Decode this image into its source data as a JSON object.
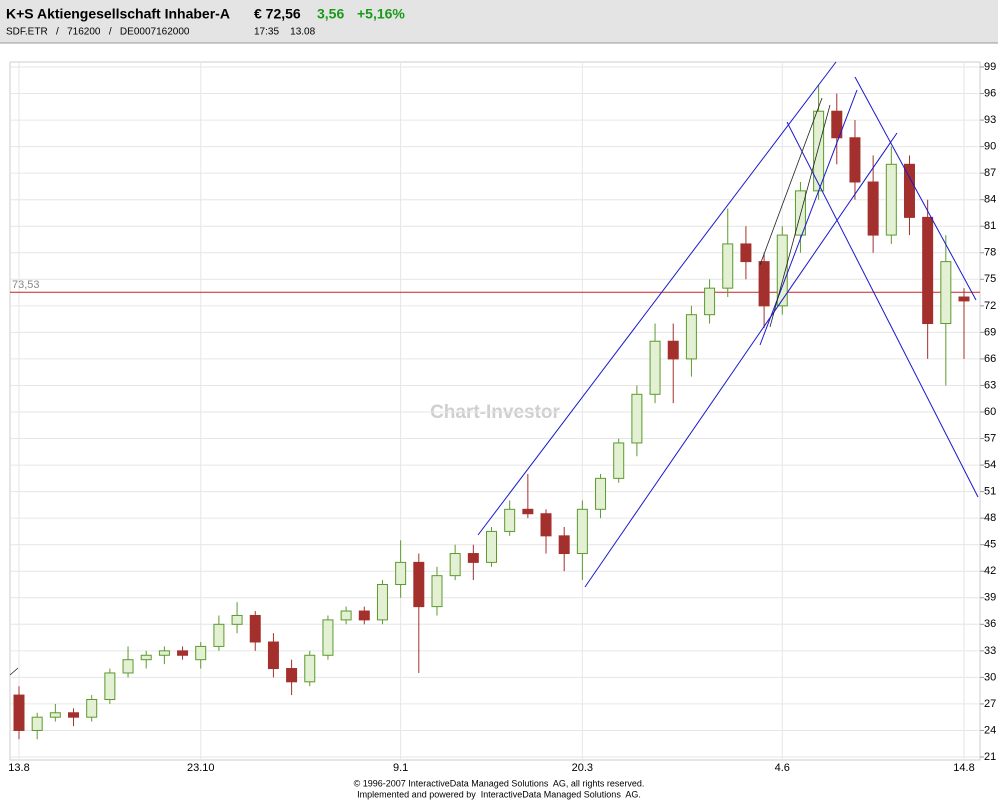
{
  "header": {
    "title": "K+S Aktiengesellschaft Inhaber-A",
    "price": "€ 72,56",
    "change": "3,56",
    "change_pct": "+5,16%",
    "ids": "SDF.ETR   /   716200   /   DE0007162000",
    "time": "17:35    13.08"
  },
  "chart_data": {
    "type": "candlestick",
    "watermark": "Chart-Investor",
    "categories": [
      "13.8",
      null,
      null,
      null,
      null,
      null,
      null,
      null,
      null,
      null,
      "23.10",
      null,
      null,
      null,
      null,
      null,
      null,
      null,
      null,
      null,
      null,
      "9.1",
      null,
      null,
      null,
      null,
      null,
      null,
      null,
      null,
      null,
      "20.3",
      null,
      null,
      null,
      null,
      null,
      null,
      null,
      null,
      null,
      null,
      "4.6",
      null,
      null,
      null,
      null,
      null,
      null,
      null,
      null,
      null,
      "14.8"
    ],
    "open": [
      28,
      24,
      25.5,
      26,
      25.5,
      27.5,
      30.5,
      32,
      32.5,
      33,
      32,
      33.5,
      36,
      37,
      34,
      31,
      29.5,
      32.5,
      36.5,
      37.5,
      36.5,
      40.5,
      43,
      38,
      41.5,
      44,
      43,
      46.5,
      49,
      48.5,
      46,
      44,
      49,
      52.5,
      56.5,
      62,
      68,
      66,
      71,
      74,
      79,
      77,
      72,
      80,
      85,
      94,
      91,
      86,
      80,
      88,
      82,
      70,
      73
    ],
    "high": [
      29,
      26,
      27,
      26.5,
      28,
      31,
      33.5,
      33,
      33.5,
      33.5,
      34,
      37,
      38.5,
      37.5,
      35,
      32,
      33,
      37,
      38,
      38,
      41,
      45.5,
      44,
      42.5,
      45,
      45,
      47,
      50,
      53,
      49,
      47,
      50,
      53,
      57,
      63,
      70,
      70,
      72,
      75,
      83,
      81,
      78,
      81,
      86,
      97,
      96,
      93,
      89,
      90,
      89,
      84,
      80,
      74
    ],
    "low": [
      23,
      23,
      25,
      24.5,
      25,
      27,
      30,
      31,
      31.5,
      32,
      31,
      33,
      35,
      33,
      30,
      28,
      29,
      32,
      36,
      36,
      36,
      39,
      30.5,
      37,
      41,
      41,
      42.5,
      46,
      48,
      44,
      42,
      41,
      48,
      52,
      55,
      61,
      61,
      64,
      70,
      73,
      75,
      69.5,
      71,
      78,
      84,
      88,
      84,
      78,
      79,
      80,
      66,
      63,
      66
    ],
    "close": [
      24,
      25.5,
      26,
      25.5,
      27.5,
      30.5,
      32,
      32.5,
      33,
      32.5,
      33.5,
      36,
      37,
      34,
      31,
      29.5,
      32.5,
      36.5,
      37.5,
      36.5,
      40.5,
      43,
      38,
      41.5,
      44,
      43,
      46.5,
      49,
      48.5,
      46,
      44,
      49,
      52.5,
      56.5,
      62,
      68,
      66,
      71,
      74,
      79,
      77,
      72,
      80,
      85,
      94,
      91,
      86,
      80,
      88,
      82,
      70,
      77,
      72.56
    ],
    "up_color": "#5c9a2c",
    "down_color": "#a3302c",
    "ylim": [
      21,
      99
    ],
    "yticks": [
      21,
      24,
      27,
      30,
      33,
      36,
      39,
      42,
      45,
      48,
      51,
      54,
      57,
      60,
      63,
      66,
      69,
      72,
      75,
      78,
      81,
      84,
      87,
      90,
      93,
      96,
      99
    ],
    "grid": true,
    "reference_line": {
      "value": 73.53,
      "label": "73,53",
      "color": "#cc2222"
    }
  },
  "footer": {
    "line1": "© 1996-2007 InteractiveData Managed Solutions  AG, all rights reserved.",
    "line2": "Implemented and powered by  InteractiveData Managed Solutions  AG."
  }
}
